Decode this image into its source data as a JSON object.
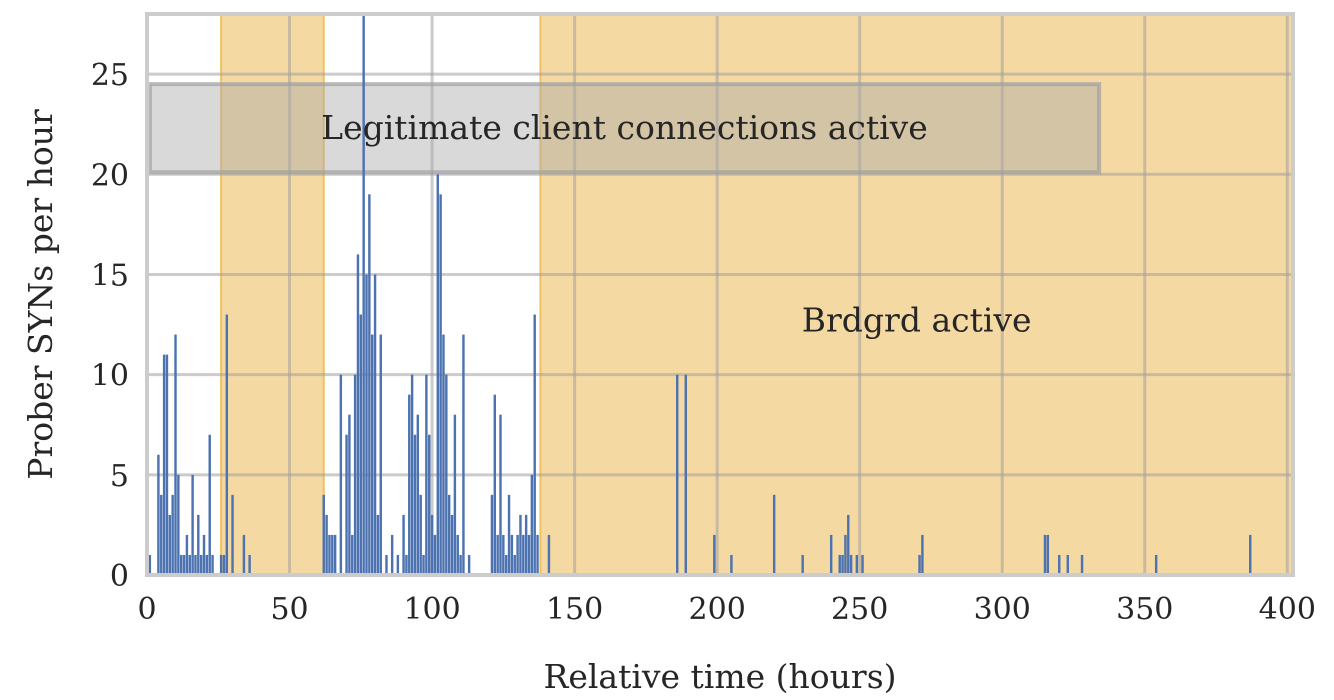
{
  "chart_data": {
    "type": "bar",
    "title": "",
    "xlabel": "Relative time (hours)",
    "ylabel": "Prober SYNs per hour",
    "xlim": [
      0,
      402
    ],
    "ylim": [
      0,
      28
    ],
    "xticks": [
      0,
      50,
      100,
      150,
      200,
      250,
      300,
      350,
      400
    ],
    "yticks": [
      0,
      5,
      10,
      15,
      20,
      25
    ],
    "grid": true,
    "colors": {
      "bars": "#4c72b0",
      "highlight": "#f5d9a3",
      "highlight_edge": "#f0c060",
      "legit_box": "#bfbfbf",
      "grid": "#cccccc",
      "frame": "#cccccc"
    },
    "regions": [
      {
        "x0": 26,
        "x1": 62
      },
      {
        "x0": 138,
        "x1": 402
      }
    ],
    "annotations": [
      {
        "text": "Legitimate client connections active",
        "x0": 1,
        "x1": 334,
        "y0": 20.1,
        "y1": 24.5
      },
      {
        "text": "Brdgrd active",
        "x": 270,
        "y": 12.7
      }
    ],
    "x": [
      1,
      4,
      5,
      6,
      7,
      8,
      9,
      10,
      11,
      12,
      13,
      14,
      15,
      16,
      17,
      18,
      19,
      20,
      21,
      22,
      23,
      26,
      27,
      28,
      30,
      34,
      36,
      62,
      63,
      64,
      65,
      66,
      68,
      70,
      71,
      72,
      73,
      74,
      75,
      76,
      77,
      78,
      79,
      80,
      81,
      82,
      84,
      86,
      88,
      90,
      91,
      92,
      93,
      94,
      95,
      96,
      97,
      98,
      99,
      100,
      101,
      102,
      103,
      104,
      105,
      106,
      107,
      108,
      109,
      110,
      111,
      113,
      121,
      122,
      123,
      124,
      125,
      126,
      127,
      128,
      129,
      130,
      131,
      132,
      133,
      134,
      135,
      136,
      137,
      141,
      186,
      189,
      199,
      205,
      220,
      230,
      240,
      243,
      244,
      245,
      246,
      247,
      249,
      251,
      271,
      272,
      315,
      316,
      320,
      323,
      328,
      354,
      387
    ],
    "y": [
      1,
      6,
      4,
      11,
      11,
      3,
      4,
      12,
      5,
      1,
      1,
      2,
      1,
      5,
      1,
      3,
      1,
      2,
      1,
      7,
      1,
      1,
      1,
      13,
      4,
      2,
      1,
      4,
      3,
      2,
      2,
      2,
      10,
      7,
      8,
      2,
      10,
      16,
      13,
      28,
      15,
      19,
      12,
      15,
      3,
      12,
      1,
      2,
      1,
      3,
      1,
      9,
      10,
      7,
      8,
      4,
      1,
      10,
      7,
      3,
      2,
      20,
      19,
      12,
      10,
      4,
      3,
      8,
      2,
      1,
      12,
      1,
      4,
      9,
      2,
      8,
      2,
      1,
      4,
      2,
      1,
      2,
      3,
      2,
      3,
      2,
      5,
      13,
      2,
      2,
      10,
      10,
      2,
      1,
      4,
      1,
      2,
      1,
      1,
      2,
      3,
      1,
      1,
      1,
      1,
      2,
      2,
      2,
      1,
      1,
      1,
      1,
      2
    ]
  }
}
